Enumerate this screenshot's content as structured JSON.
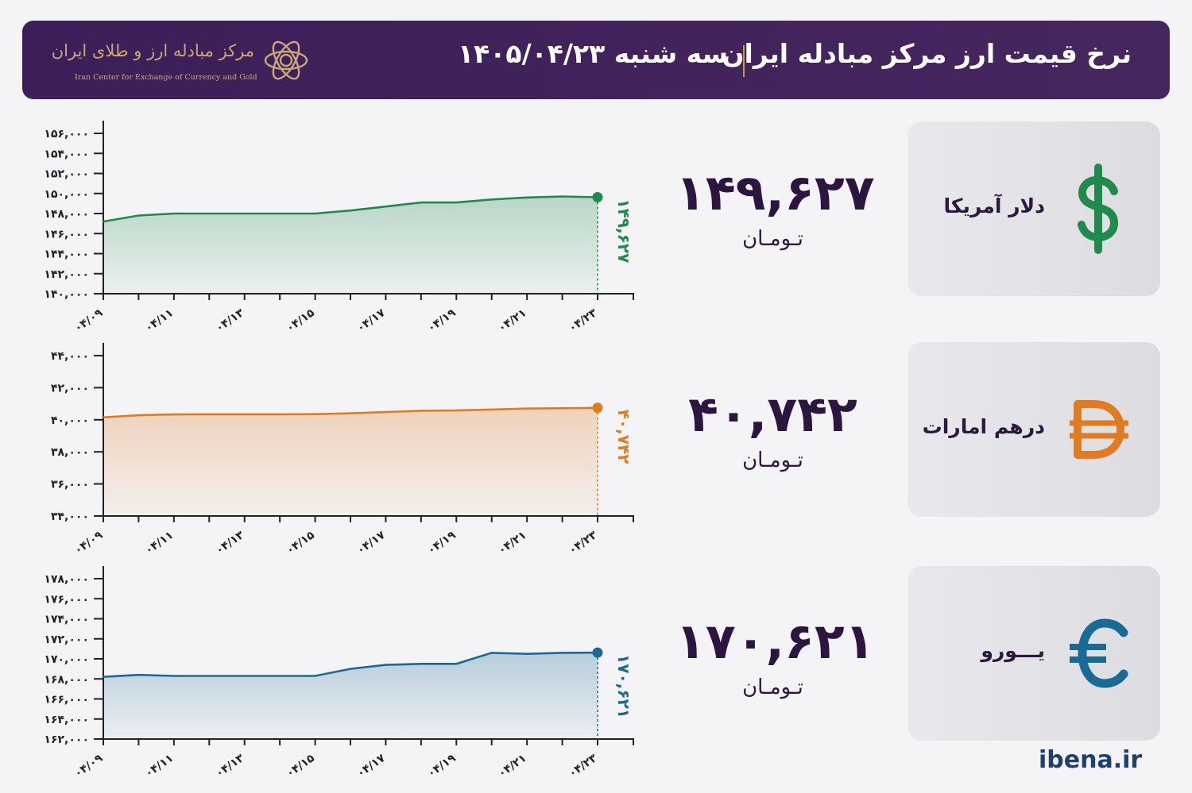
{
  "header": {
    "title": "نرخ قیمت ارز مرکز مبادله ایران",
    "date": "سه شنبه ۱۴۰۵/۰۴/۲۳",
    "logo_fa": "مرکز مبادله ارز و طلای ایران",
    "logo_en": "Iran Center for Exchange of Currency and Gold"
  },
  "site": "ibena.ir",
  "colors": {
    "header_bg": "#3c1f58",
    "gold": "#c9a778",
    "usd": "#1f8a4c",
    "aed": "#e07b22",
    "eur": "#1a6a96",
    "text_dark": "#2c1640"
  },
  "currencies": [
    {
      "name": "دلار آمریکا",
      "icon": "dollar-sign-icon",
      "price": "۱۴۹,۶۲۷",
      "unit": "تـومـان"
    },
    {
      "name": "درهم امارات",
      "icon": "dirham-sign-icon",
      "price": "۴۰,۷۴۲",
      "unit": "تـومـان"
    },
    {
      "name": "یـــورو",
      "icon": "euro-sign-icon",
      "price": "۱۷۰,۶۲۱",
      "unit": "تـومـان"
    }
  ],
  "chart_data": [
    {
      "type": "area",
      "x": [
        "04/09",
        "04/10",
        "04/11",
        "04/12",
        "04/13",
        "04/14",
        "04/15",
        "04/16",
        "04/17",
        "04/18",
        "04/19",
        "04/20",
        "04/21",
        "04/22",
        "04/23"
      ],
      "x_tick_labels": [
        "۰۴/۰۹",
        "۰۴/۱۱",
        "۰۴/۱۳",
        "۰۴/۱۵",
        "۰۴/۱۷",
        "۰۴/۱۹",
        "۰۴/۲۱",
        "۰۴/۲۳"
      ],
      "values": [
        147200,
        147800,
        148000,
        148000,
        148000,
        148000,
        148000,
        148300,
        148700,
        149100,
        149100,
        149400,
        149600,
        149700,
        149627
      ],
      "ylim": [
        140000,
        156000
      ],
      "y_ticks": [
        140000,
        142000,
        144000,
        146000,
        148000,
        150000,
        152000,
        154000,
        156000
      ],
      "y_tick_labels": [
        "۱۴۰,۰۰۰",
        "۱۴۲,۰۰۰",
        "۱۴۴,۰۰۰",
        "۱۴۶,۰۰۰",
        "۱۴۸,۰۰۰",
        "۱۵۰,۰۰۰",
        "۱۵۲,۰۰۰",
        "۱۵۴,۰۰۰",
        "۱۵۶,۰۰۰"
      ],
      "last_label": "۱۴۹,۶۲۷",
      "color": "#1f8a4c"
    },
    {
      "type": "area",
      "x": [
        "04/09",
        "04/10",
        "04/11",
        "04/12",
        "04/13",
        "04/14",
        "04/15",
        "04/16",
        "04/17",
        "04/18",
        "04/19",
        "04/20",
        "04/21",
        "04/22",
        "04/23"
      ],
      "x_tick_labels": [
        "۰۴/۰۹",
        "۰۴/۱۱",
        "۰۴/۱۳",
        "۰۴/۱۵",
        "۰۴/۱۷",
        "۰۴/۱۹",
        "۰۴/۲۱",
        "۰۴/۲۳"
      ],
      "values": [
        40150,
        40280,
        40330,
        40340,
        40340,
        40340,
        40350,
        40400,
        40480,
        40560,
        40580,
        40640,
        40700,
        40720,
        40742
      ],
      "ylim": [
        34000,
        44000
      ],
      "y_ticks": [
        34000,
        36000,
        38000,
        40000,
        42000,
        44000
      ],
      "y_tick_labels": [
        "۳۴,۰۰۰",
        "۳۶,۰۰۰",
        "۳۸,۰۰۰",
        "۴۰,۰۰۰",
        "۴۲,۰۰۰",
        "۴۴,۰۰۰"
      ],
      "last_label": "۴۰,۷۴۲",
      "color": "#e07b22"
    },
    {
      "type": "area",
      "x": [
        "04/09",
        "04/10",
        "04/11",
        "04/12",
        "04/13",
        "04/14",
        "04/15",
        "04/16",
        "04/17",
        "04/18",
        "04/19",
        "04/20",
        "04/21",
        "04/22",
        "04/23"
      ],
      "x_tick_labels": [
        "۰۴/۰۹",
        "۰۴/۱۱",
        "۰۴/۱۳",
        "۰۴/۱۵",
        "۰۴/۱۷",
        "۰۴/۱۹",
        "۰۴/۲۱",
        "۰۴/۲۳"
      ],
      "values": [
        168200,
        168400,
        168300,
        168300,
        168300,
        168300,
        168300,
        169000,
        169400,
        169500,
        169500,
        170600,
        170500,
        170600,
        170621
      ],
      "ylim": [
        162000,
        178000
      ],
      "y_ticks": [
        162000,
        164000,
        166000,
        168000,
        170000,
        172000,
        174000,
        176000,
        178000
      ],
      "y_tick_labels": [
        "۱۶۲,۰۰۰",
        "۱۶۴,۰۰۰",
        "۱۶۶,۰۰۰",
        "۱۶۸,۰۰۰",
        "۱۷۰,۰۰۰",
        "۱۷۲,۰۰۰",
        "۱۷۴,۰۰۰",
        "۱۷۶,۰۰۰",
        "۱۷۸,۰۰۰"
      ],
      "last_label": "۱۷۰,۶۲۱",
      "color": "#1a6a96"
    }
  ]
}
